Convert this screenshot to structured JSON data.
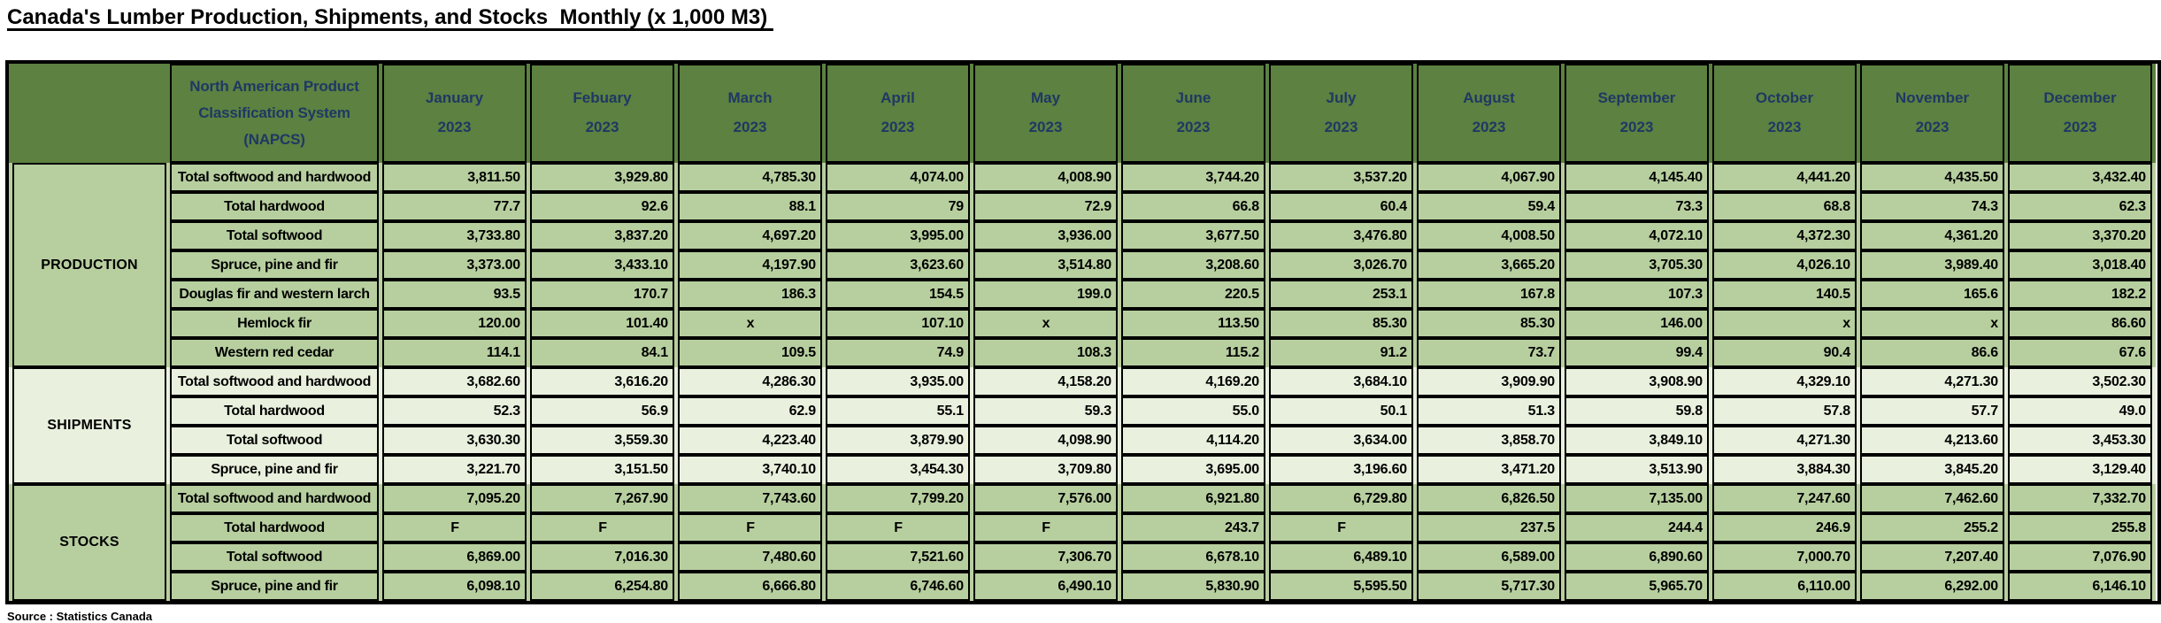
{
  "title": "Canada's Lumber Production, Shipments, and Stocks  Monthly (x 1,000 M3) ",
  "source": "Source : Statistics Canada",
  "colors": {
    "header_bg": "#5c8140",
    "header_text": "#1f3864",
    "row_green_bg": "#b7cf9f",
    "row_pale_bg": "#e9f1de",
    "section_label_text": "#f93822",
    "border": "#000000"
  },
  "header": {
    "napcs_lines": [
      "North American Product",
      "Classification System",
      "(NAPCS)"
    ],
    "months": [
      {
        "name": "January",
        "year": "2023"
      },
      {
        "name": "Febuary",
        "year": "2023"
      },
      {
        "name": "March",
        "year": "2023"
      },
      {
        "name": "April",
        "year": "2023"
      },
      {
        "name": "May",
        "year": "2023"
      },
      {
        "name": "June",
        "year": "2023"
      },
      {
        "name": "July",
        "year": "2023"
      },
      {
        "name": "August",
        "year": "2023"
      },
      {
        "name": "September",
        "year": "2023"
      },
      {
        "name": "October",
        "year": "2023"
      },
      {
        "name": "November",
        "year": "2023"
      },
      {
        "name": "December",
        "year": "2023"
      }
    ]
  },
  "sections": [
    {
      "label": "PRODUCTION",
      "style": "green",
      "rows": [
        {
          "label": "Total softwood and hardwood",
          "values": [
            "3,811.50",
            "3,929.80",
            "4,785.30",
            "4,074.00",
            "4,008.90",
            "3,744.20",
            "3,537.20",
            "4,067.90",
            "4,145.40",
            "4,441.20",
            "4,435.50",
            "3,432.40"
          ]
        },
        {
          "label": "Total hardwood",
          "values": [
            "77.7",
            "92.6",
            "88.1",
            "79",
            "72.9",
            "66.8",
            "60.4",
            "59.4",
            "73.3",
            "68.8",
            "74.3",
            "62.3"
          ]
        },
        {
          "label": "Total softwood",
          "values": [
            "3,733.80",
            "3,837.20",
            "4,697.20",
            "3,995.00",
            "3,936.00",
            "3,677.50",
            "3,476.80",
            "4,008.50",
            "4,072.10",
            "4,372.30",
            "4,361.20",
            "3,370.20"
          ]
        },
        {
          "label": "Spruce, pine and fir",
          "values": [
            "3,373.00",
            "3,433.10",
            "4,197.90",
            "3,623.60",
            "3,514.80",
            "3,208.60",
            "3,026.70",
            "3,665.20",
            "3,705.30",
            "4,026.10",
            "3,989.40",
            "3,018.40"
          ]
        },
        {
          "label": "Douglas fir and western larch",
          "values": [
            "93.5",
            "170.7",
            "186.3",
            "154.5",
            "199.0",
            "220.5",
            "253.1",
            "167.8",
            "107.3",
            "140.5",
            "165.6",
            "182.2"
          ]
        },
        {
          "label": "Hemlock fir",
          "values": [
            "120.00",
            "101.40",
            "x",
            "107.10",
            "x",
            "113.50",
            "85.30",
            "85.30",
            "146.00",
            "x",
            "x",
            "86.60"
          ],
          "aligns": [
            "right",
            "right",
            "center",
            "right",
            "center",
            "right",
            "right",
            "right",
            "right",
            "right",
            "right",
            "right"
          ]
        },
        {
          "label": "Western red cedar",
          "values": [
            "114.1",
            "84.1",
            "109.5",
            "74.9",
            "108.3",
            "115.2",
            "91.2",
            "73.7",
            "99.4",
            "90.4",
            "86.6",
            "67.6"
          ]
        }
      ]
    },
    {
      "label": "SHIPMENTS",
      "style": "pale",
      "rows": [
        {
          "label": "Total softwood and hardwood",
          "values": [
            "3,682.60",
            "3,616.20",
            "4,286.30",
            "3,935.00",
            "4,158.20",
            "4,169.20",
            "3,684.10",
            "3,909.90",
            "3,908.90",
            "4,329.10",
            "4,271.30",
            "3,502.30"
          ]
        },
        {
          "label": "Total hardwood",
          "values": [
            "52.3",
            "56.9",
            "62.9",
            "55.1",
            "59.3",
            "55.0",
            "50.1",
            "51.3",
            "59.8",
            "57.8",
            "57.7",
            "49.0"
          ]
        },
        {
          "label": "Total softwood",
          "values": [
            "3,630.30",
            "3,559.30",
            "4,223.40",
            "3,879.90",
            "4,098.90",
            "4,114.20",
            "3,634.00",
            "3,858.70",
            "3,849.10",
            "4,271.30",
            "4,213.60",
            "3,453.30"
          ]
        },
        {
          "label": "Spruce, pine and fir",
          "values": [
            "3,221.70",
            "3,151.50",
            "3,740.10",
            "3,454.30",
            "3,709.80",
            "3,695.00",
            "3,196.60",
            "3,471.20",
            "3,513.90",
            "3,884.30",
            "3,845.20",
            "3,129.40"
          ]
        }
      ]
    },
    {
      "label": "STOCKS",
      "style": "green",
      "rows": [
        {
          "label": "Total softwood and hardwood",
          "values": [
            "7,095.20",
            "7,267.90",
            "7,743.60",
            "7,799.20",
            "7,576.00",
            "6,921.80",
            "6,729.80",
            "6,826.50",
            "7,135.00",
            "7,247.60",
            "7,462.60",
            "7,332.70"
          ]
        },
        {
          "label": "Total hardwood",
          "values": [
            "F",
            "F",
            "F",
            "F",
            "F",
            "243.7",
            "F",
            "237.5",
            "244.4",
            "246.9",
            "255.2",
            "255.8"
          ]
        },
        {
          "label": "Total softwood",
          "values": [
            "6,869.00",
            "7,016.30",
            "7,480.60",
            "7,521.60",
            "7,306.70",
            "6,678.10",
            "6,489.10",
            "6,589.00",
            "6,890.60",
            "7,000.70",
            "7,207.40",
            "7,076.90"
          ]
        },
        {
          "label": "Spruce, pine and fir",
          "values": [
            "6,098.10",
            "6,254.80",
            "6,666.80",
            "6,746.60",
            "6,490.10",
            "5,830.90",
            "5,595.50",
            "5,717.30",
            "5,965.70",
            "6,110.00",
            "6,292.00",
            "6,146.10"
          ]
        }
      ]
    }
  ]
}
